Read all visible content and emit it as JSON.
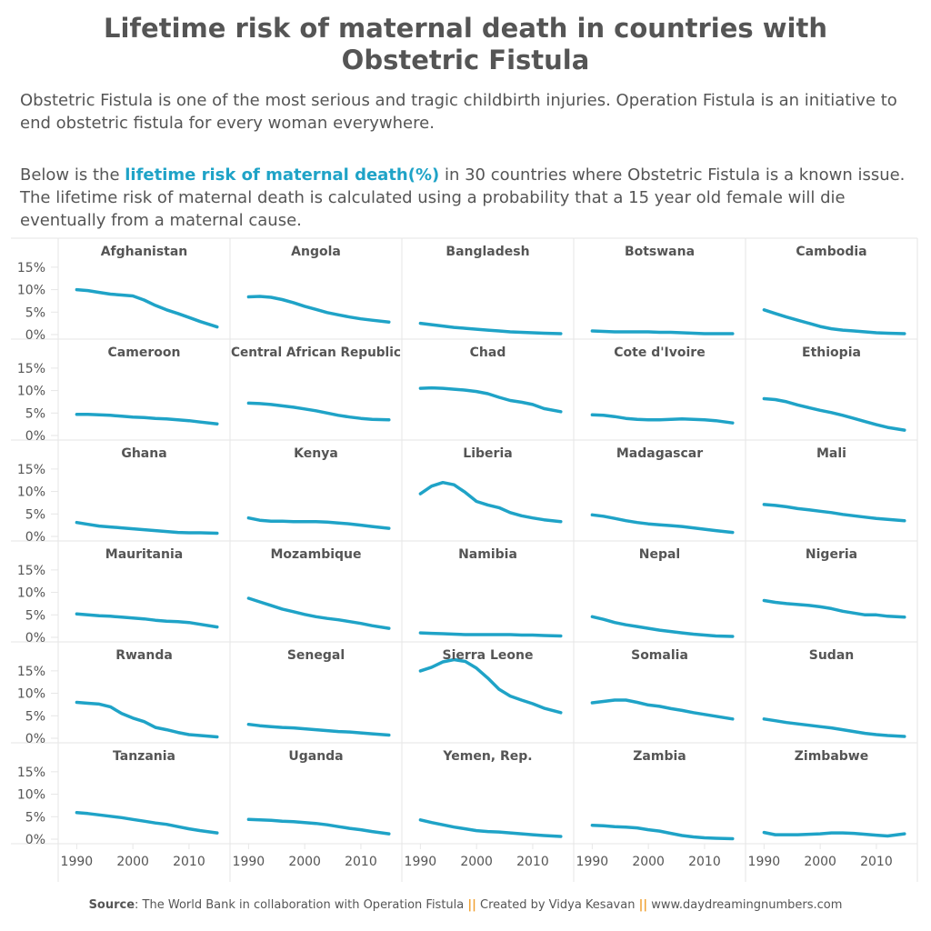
{
  "title": "Lifetime risk of maternal death in countries with Obstetric Fistula",
  "intro": "Obstetric Fistula is one of the most serious and tragic childbirth injuries. Operation Fistula is an initiative to end obstetric fistula for every woman everywhere.",
  "description": {
    "before": "Below is the ",
    "highlight": "lifetime risk of maternal death(%)",
    "after": " in 30 countries where Obstetric Fistula is a known issue. The lifetime risk of maternal death is calculated using a probability that a 15 year old female will die eventually from a maternal cause."
  },
  "footer": {
    "source_label": "Source",
    "source_text": ": The World Bank in collaboration with Operation Fistula ",
    "separator": "||",
    "created_by": " Created by Vidya Kesavan ",
    "website": " www.daydreamingnumbers.com"
  },
  "colors": {
    "line": "#1fa3c7",
    "highlight": "#1fa3c7",
    "separator": "#f0a030",
    "text": "#555555",
    "grid": "#e6e6e6"
  },
  "chart_data": {
    "type": "line",
    "x": [
      1990,
      1992,
      1994,
      1996,
      1998,
      2000,
      2002,
      2004,
      2006,
      2008,
      2010,
      2012,
      2015
    ],
    "xlim": [
      1988,
      2016
    ],
    "x_ticks": [
      1990,
      2000,
      2010
    ],
    "x_tick_labels": [
      "1990",
      "2000",
      "2010"
    ],
    "ylim": [
      0,
      17
    ],
    "y_ticks": [
      0,
      5,
      10,
      15
    ],
    "y_tick_labels": [
      "0%",
      "5%",
      "10%",
      "15%"
    ],
    "grid": false,
    "series": [
      {
        "name": "Afghanistan",
        "values": [
          10.0,
          9.8,
          9.4,
          9.0,
          8.8,
          8.6,
          7.7,
          6.5,
          5.5,
          4.7,
          3.8,
          2.9,
          1.7
        ]
      },
      {
        "name": "Angola",
        "values": [
          8.4,
          8.5,
          8.3,
          7.8,
          7.1,
          6.3,
          5.6,
          4.9,
          4.4,
          3.9,
          3.5,
          3.2,
          2.8
        ]
      },
      {
        "name": "Bangladesh",
        "values": [
          2.5,
          2.2,
          1.9,
          1.6,
          1.4,
          1.2,
          1.0,
          0.8,
          0.6,
          0.5,
          0.4,
          0.3,
          0.2
        ]
      },
      {
        "name": "Botswana",
        "values": [
          0.8,
          0.7,
          0.6,
          0.6,
          0.6,
          0.6,
          0.5,
          0.5,
          0.4,
          0.3,
          0.2,
          0.2,
          0.2
        ]
      },
      {
        "name": "Cambodia",
        "values": [
          5.5,
          4.7,
          3.9,
          3.2,
          2.5,
          1.8,
          1.3,
          1.0,
          0.8,
          0.6,
          0.4,
          0.3,
          0.2
        ]
      },
      {
        "name": "Cameroon",
        "values": [
          4.7,
          4.7,
          4.6,
          4.5,
          4.3,
          4.1,
          4.0,
          3.8,
          3.7,
          3.5,
          3.3,
          3.0,
          2.6
        ]
      },
      {
        "name": "Central African Republic",
        "values": [
          7.2,
          7.1,
          6.9,
          6.6,
          6.3,
          5.9,
          5.5,
          5.0,
          4.5,
          4.1,
          3.8,
          3.6,
          3.5
        ]
      },
      {
        "name": "Chad",
        "values": [
          10.5,
          10.6,
          10.5,
          10.3,
          10.1,
          9.8,
          9.3,
          8.5,
          7.8,
          7.4,
          6.9,
          6.0,
          5.3
        ]
      },
      {
        "name": "Cote d'Ivoire",
        "values": [
          4.6,
          4.5,
          4.2,
          3.8,
          3.6,
          3.5,
          3.5,
          3.6,
          3.7,
          3.6,
          3.5,
          3.3,
          2.8
        ]
      },
      {
        "name": "Ethiopia",
        "values": [
          8.2,
          8.0,
          7.5,
          6.8,
          6.2,
          5.6,
          5.1,
          4.5,
          3.8,
          3.1,
          2.4,
          1.8,
          1.2
        ]
      },
      {
        "name": "Ghana",
        "values": [
          3.1,
          2.7,
          2.3,
          2.1,
          1.9,
          1.7,
          1.5,
          1.3,
          1.1,
          0.9,
          0.8,
          0.8,
          0.7
        ]
      },
      {
        "name": "Kenya",
        "values": [
          4.1,
          3.6,
          3.4,
          3.4,
          3.3,
          3.3,
          3.3,
          3.2,
          3.0,
          2.8,
          2.5,
          2.2,
          1.8
        ]
      },
      {
        "name": "Liberia",
        "values": [
          9.5,
          11.2,
          12.0,
          11.5,
          9.8,
          7.8,
          7.0,
          6.4,
          5.3,
          4.6,
          4.1,
          3.7,
          3.3
        ]
      },
      {
        "name": "Madagascar",
        "values": [
          4.8,
          4.5,
          4.0,
          3.5,
          3.1,
          2.8,
          2.6,
          2.4,
          2.2,
          1.9,
          1.6,
          1.3,
          0.9
        ]
      },
      {
        "name": "Mali",
        "values": [
          7.1,
          6.9,
          6.6,
          6.2,
          5.9,
          5.6,
          5.3,
          4.9,
          4.6,
          4.3,
          4.0,
          3.8,
          3.5
        ]
      },
      {
        "name": "Mauritania",
        "values": [
          5.2,
          5.0,
          4.8,
          4.7,
          4.5,
          4.3,
          4.1,
          3.8,
          3.6,
          3.5,
          3.3,
          2.9,
          2.3
        ]
      },
      {
        "name": "Mozambique",
        "values": [
          8.7,
          7.9,
          7.1,
          6.3,
          5.7,
          5.1,
          4.6,
          4.2,
          3.9,
          3.5,
          3.1,
          2.6,
          2.0
        ]
      },
      {
        "name": "Namibia",
        "values": [
          1.0,
          0.9,
          0.8,
          0.7,
          0.6,
          0.6,
          0.6,
          0.6,
          0.6,
          0.5,
          0.5,
          0.4,
          0.3
        ]
      },
      {
        "name": "Nepal",
        "values": [
          4.6,
          4.0,
          3.3,
          2.8,
          2.4,
          2.0,
          1.6,
          1.3,
          1.0,
          0.7,
          0.5,
          0.3,
          0.2
        ]
      },
      {
        "name": "Nigeria",
        "values": [
          8.2,
          7.8,
          7.5,
          7.3,
          7.1,
          6.8,
          6.4,
          5.8,
          5.4,
          5.0,
          5.0,
          4.7,
          4.5
        ]
      },
      {
        "name": "Rwanda",
        "values": [
          8.0,
          7.8,
          7.6,
          7.0,
          5.5,
          4.5,
          3.7,
          2.4,
          1.9,
          1.3,
          0.8,
          0.6,
          0.3
        ]
      },
      {
        "name": "Senegal",
        "values": [
          3.1,
          2.8,
          2.6,
          2.4,
          2.3,
          2.1,
          1.9,
          1.7,
          1.5,
          1.4,
          1.2,
          1.0,
          0.7
        ]
      },
      {
        "name": "Sierra Leone",
        "values": [
          15.0,
          15.8,
          17.0,
          17.5,
          17.1,
          15.6,
          13.4,
          10.9,
          9.4,
          8.5,
          7.7,
          6.7,
          5.7
        ]
      },
      {
        "name": "Somalia",
        "values": [
          7.9,
          8.2,
          8.5,
          8.5,
          8.0,
          7.4,
          7.1,
          6.6,
          6.2,
          5.7,
          5.3,
          4.9,
          4.3
        ]
      },
      {
        "name": "Sudan",
        "values": [
          4.3,
          3.9,
          3.5,
          3.2,
          2.9,
          2.6,
          2.3,
          1.9,
          1.5,
          1.1,
          0.8,
          0.6,
          0.4
        ]
      },
      {
        "name": "Tanzania",
        "values": [
          5.9,
          5.7,
          5.4,
          5.1,
          4.8,
          4.4,
          4.0,
          3.6,
          3.3,
          2.8,
          2.3,
          1.9,
          1.4
        ]
      },
      {
        "name": "Uganda",
        "values": [
          4.4,
          4.3,
          4.2,
          4.0,
          3.9,
          3.7,
          3.5,
          3.2,
          2.8,
          2.4,
          2.1,
          1.7,
          1.2
        ]
      },
      {
        "name": "Yemen, Rep.",
        "values": [
          4.3,
          3.7,
          3.2,
          2.7,
          2.3,
          1.9,
          1.7,
          1.6,
          1.4,
          1.2,
          1.0,
          0.8,
          0.6
        ]
      },
      {
        "name": "Zambia",
        "values": [
          3.1,
          3.0,
          2.8,
          2.7,
          2.5,
          2.1,
          1.8,
          1.3,
          0.8,
          0.5,
          0.3,
          0.2,
          0.1
        ]
      },
      {
        "name": "Zimbabwe",
        "values": [
          1.5,
          1.0,
          1.0,
          1.0,
          1.1,
          1.2,
          1.4,
          1.4,
          1.3,
          1.1,
          0.9,
          0.7,
          1.2
        ]
      }
    ]
  }
}
